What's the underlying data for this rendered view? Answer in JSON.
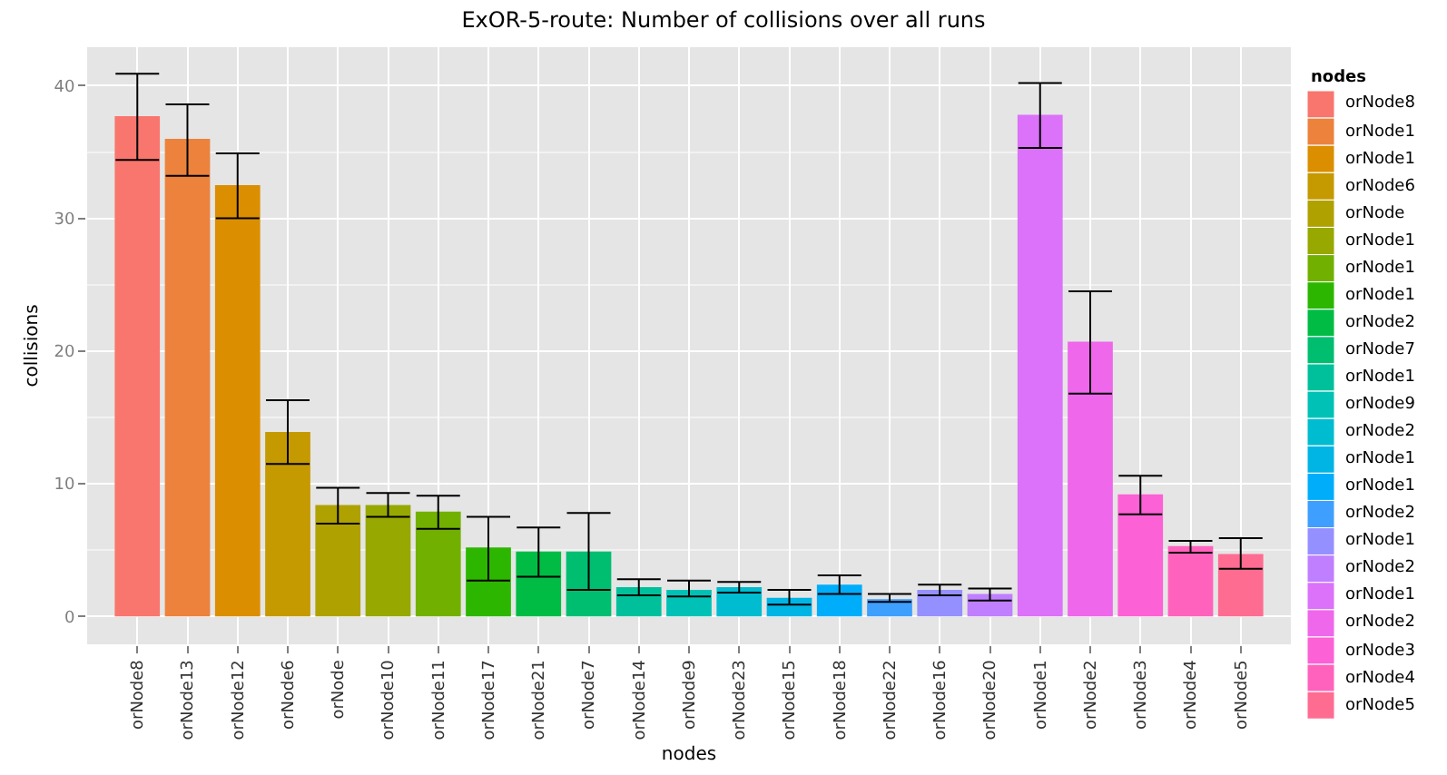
{
  "chart_data": {
    "type": "bar",
    "title": "ExOR-5-route: Number of collisions over all runs",
    "xlabel": "nodes",
    "ylabel": "collisions",
    "legend_title": "nodes",
    "legend": "right",
    "grid": true,
    "categories": [
      "orNode8",
      "orNode13",
      "orNode12",
      "orNode6",
      "orNode",
      "orNode10",
      "orNode11",
      "orNode17",
      "orNode21",
      "orNode7",
      "orNode14",
      "orNode9",
      "orNode23",
      "orNode15",
      "orNode18",
      "orNode22",
      "orNode16",
      "orNode20",
      "orNode1",
      "orNode2",
      "orNode3",
      "orNode4",
      "orNode5"
    ],
    "ylim": [
      -2.1,
      42.9
    ],
    "yticks": [
      0,
      10,
      20,
      30,
      40
    ],
    "series": [
      {
        "name": "orNode8",
        "color": "#f8766d",
        "values": [
          37.7,
          null,
          null,
          null,
          null,
          null,
          null,
          null,
          null,
          null,
          null,
          null,
          null,
          null,
          null,
          null,
          null,
          null,
          null,
          null,
          null,
          null,
          null
        ],
        "errors": [
          [
            34.4,
            40.9
          ],
          null,
          null,
          null,
          null,
          null,
          null,
          null,
          null,
          null,
          null,
          null,
          null,
          null,
          null,
          null,
          null,
          null,
          null,
          null,
          null,
          null,
          null
        ]
      },
      {
        "name": "orNode1",
        "color": "#ec823c",
        "values": [
          null,
          36.0,
          null,
          null,
          null,
          null,
          null,
          null,
          null,
          null,
          null,
          null,
          null,
          null,
          null,
          null,
          null,
          null,
          null,
          null,
          null,
          null,
          null
        ],
        "errors": [
          null,
          [
            33.2,
            38.6
          ],
          null,
          null,
          null,
          null,
          null,
          null,
          null,
          null,
          null,
          null,
          null,
          null,
          null,
          null,
          null,
          null,
          null,
          null,
          null,
          null,
          null
        ]
      },
      {
        "name": "orNode1",
        "color": "#db8e00",
        "values": [
          null,
          null,
          32.5,
          null,
          null,
          null,
          null,
          null,
          null,
          null,
          null,
          null,
          null,
          null,
          null,
          null,
          null,
          null,
          null,
          null,
          null,
          null,
          null
        ],
        "errors": [
          null,
          null,
          [
            30.0,
            34.9
          ],
          null,
          null,
          null,
          null,
          null,
          null,
          null,
          null,
          null,
          null,
          null,
          null,
          null,
          null,
          null,
          null,
          null,
          null,
          null,
          null
        ]
      },
      {
        "name": "orNode6",
        "color": "#c59900",
        "values": [
          null,
          null,
          null,
          13.9,
          null,
          null,
          null,
          null,
          null,
          null,
          null,
          null,
          null,
          null,
          null,
          null,
          null,
          null,
          null,
          null,
          null,
          null,
          null
        ],
        "errors": [
          null,
          null,
          null,
          [
            11.5,
            16.3
          ],
          null,
          null,
          null,
          null,
          null,
          null,
          null,
          null,
          null,
          null,
          null,
          null,
          null,
          null,
          null,
          null,
          null,
          null,
          null
        ]
      },
      {
        "name": "orNode",
        "color": "#afa100",
        "values": [
          null,
          null,
          null,
          null,
          8.4,
          null,
          null,
          null,
          null,
          null,
          null,
          null,
          null,
          null,
          null,
          null,
          null,
          null,
          null,
          null,
          null,
          null,
          null
        ],
        "errors": [
          null,
          null,
          null,
          null,
          [
            7.0,
            9.7
          ],
          null,
          null,
          null,
          null,
          null,
          null,
          null,
          null,
          null,
          null,
          null,
          null,
          null,
          null,
          null,
          null,
          null,
          null
        ]
      },
      {
        "name": "orNode1",
        "color": "#97a800",
        "values": [
          null,
          null,
          null,
          null,
          null,
          8.4,
          null,
          null,
          null,
          null,
          null,
          null,
          null,
          null,
          null,
          null,
          null,
          null,
          null,
          null,
          null,
          null,
          null
        ],
        "errors": [
          null,
          null,
          null,
          null,
          null,
          [
            7.5,
            9.3
          ],
          null,
          null,
          null,
          null,
          null,
          null,
          null,
          null,
          null,
          null,
          null,
          null,
          null,
          null,
          null,
          null,
          null
        ]
      },
      {
        "name": "orNode1",
        "color": "#72b000",
        "values": [
          null,
          null,
          null,
          null,
          null,
          null,
          7.9,
          null,
          null,
          null,
          null,
          null,
          null,
          null,
          null,
          null,
          null,
          null,
          null,
          null,
          null,
          null,
          null
        ],
        "errors": [
          null,
          null,
          null,
          null,
          null,
          null,
          [
            6.6,
            9.1
          ],
          null,
          null,
          null,
          null,
          null,
          null,
          null,
          null,
          null,
          null,
          null,
          null,
          null,
          null,
          null,
          null
        ]
      },
      {
        "name": "orNode1",
        "color": "#2db600",
        "values": [
          null,
          null,
          null,
          null,
          null,
          null,
          null,
          5.2,
          null,
          null,
          null,
          null,
          null,
          null,
          null,
          null,
          null,
          null,
          null,
          null,
          null,
          null,
          null
        ],
        "errors": [
          null,
          null,
          null,
          null,
          null,
          null,
          null,
          [
            2.7,
            7.5
          ],
          null,
          null,
          null,
          null,
          null,
          null,
          null,
          null,
          null,
          null,
          null,
          null,
          null,
          null,
          null
        ]
      },
      {
        "name": "orNode2",
        "color": "#00bc44",
        "values": [
          null,
          null,
          null,
          null,
          null,
          null,
          null,
          null,
          4.9,
          null,
          null,
          null,
          null,
          null,
          null,
          null,
          null,
          null,
          null,
          null,
          null,
          null,
          null
        ],
        "errors": [
          null,
          null,
          null,
          null,
          null,
          null,
          null,
          null,
          [
            3.0,
            6.7
          ],
          null,
          null,
          null,
          null,
          null,
          null,
          null,
          null,
          null,
          null,
          null,
          null,
          null,
          null
        ]
      },
      {
        "name": "orNode7",
        "color": "#00be70",
        "values": [
          null,
          null,
          null,
          null,
          null,
          null,
          null,
          null,
          null,
          4.9,
          null,
          null,
          null,
          null,
          null,
          null,
          null,
          null,
          null,
          null,
          null,
          null,
          null
        ],
        "errors": [
          null,
          null,
          null,
          null,
          null,
          null,
          null,
          null,
          null,
          [
            2.0,
            7.8
          ],
          null,
          null,
          null,
          null,
          null,
          null,
          null,
          null,
          null,
          null,
          null,
          null,
          null
        ]
      },
      {
        "name": "orNode1",
        "color": "#00c09b",
        "values": [
          null,
          null,
          null,
          null,
          null,
          null,
          null,
          null,
          null,
          null,
          2.2,
          null,
          null,
          null,
          null,
          null,
          null,
          null,
          null,
          null,
          null,
          null,
          null
        ],
        "errors": [
          null,
          null,
          null,
          null,
          null,
          null,
          null,
          null,
          null,
          null,
          [
            1.6,
            2.8
          ],
          null,
          null,
          null,
          null,
          null,
          null,
          null,
          null,
          null,
          null,
          null,
          null
        ]
      },
      {
        "name": "orNode9",
        "color": "#00c1b6",
        "values": [
          null,
          null,
          null,
          null,
          null,
          null,
          null,
          null,
          null,
          null,
          null,
          2.0,
          null,
          null,
          null,
          null,
          null,
          null,
          null,
          null,
          null,
          null,
          null
        ],
        "errors": [
          null,
          null,
          null,
          null,
          null,
          null,
          null,
          null,
          null,
          null,
          null,
          [
            1.5,
            2.7
          ],
          null,
          null,
          null,
          null,
          null,
          null,
          null,
          null,
          null,
          null,
          null
        ]
      },
      {
        "name": "orNode2",
        "color": "#00bcd0",
        "values": [
          null,
          null,
          null,
          null,
          null,
          null,
          null,
          null,
          null,
          null,
          null,
          null,
          2.2,
          null,
          null,
          null,
          null,
          null,
          null,
          null,
          null,
          null,
          null
        ],
        "errors": [
          null,
          null,
          null,
          null,
          null,
          null,
          null,
          null,
          null,
          null,
          null,
          null,
          [
            1.8,
            2.6
          ],
          null,
          null,
          null,
          null,
          null,
          null,
          null,
          null,
          null,
          null
        ]
      },
      {
        "name": "orNode1",
        "color": "#00b4e4",
        "values": [
          null,
          null,
          null,
          null,
          null,
          null,
          null,
          null,
          null,
          null,
          null,
          null,
          null,
          1.4,
          null,
          null,
          null,
          null,
          null,
          null,
          null,
          null,
          null
        ],
        "errors": [
          null,
          null,
          null,
          null,
          null,
          null,
          null,
          null,
          null,
          null,
          null,
          null,
          null,
          [
            0.9,
            2.0
          ],
          null,
          null,
          null,
          null,
          null,
          null,
          null,
          null,
          null
        ]
      },
      {
        "name": "orNode1",
        "color": "#00adfa",
        "values": [
          null,
          null,
          null,
          null,
          null,
          null,
          null,
          null,
          null,
          null,
          null,
          null,
          null,
          null,
          2.4,
          null,
          null,
          null,
          null,
          null,
          null,
          null,
          null
        ],
        "errors": [
          null,
          null,
          null,
          null,
          null,
          null,
          null,
          null,
          null,
          null,
          null,
          null,
          null,
          null,
          [
            1.7,
            3.1
          ],
          null,
          null,
          null,
          null,
          null,
          null,
          null,
          null
        ]
      },
      {
        "name": "orNode2",
        "color": "#3e9fff",
        "values": [
          null,
          null,
          null,
          null,
          null,
          null,
          null,
          null,
          null,
          null,
          null,
          null,
          null,
          null,
          null,
          1.3,
          null,
          null,
          null,
          null,
          null,
          null,
          null
        ],
        "errors": [
          null,
          null,
          null,
          null,
          null,
          null,
          null,
          null,
          null,
          null,
          null,
          null,
          null,
          null,
          null,
          [
            1.1,
            1.7
          ],
          null,
          null,
          null,
          null,
          null,
          null,
          null
        ]
      },
      {
        "name": "orNode1",
        "color": "#9590ff",
        "values": [
          null,
          null,
          null,
          null,
          null,
          null,
          null,
          null,
          null,
          null,
          null,
          null,
          null,
          null,
          null,
          null,
          2.0,
          null,
          null,
          null,
          null,
          null,
          null
        ],
        "errors": [
          null,
          null,
          null,
          null,
          null,
          null,
          null,
          null,
          null,
          null,
          null,
          null,
          null,
          null,
          null,
          null,
          [
            1.6,
            2.4
          ],
          null,
          null,
          null,
          null,
          null,
          null
        ]
      },
      {
        "name": "orNode2",
        "color": "#c07fff",
        "values": [
          null,
          null,
          null,
          null,
          null,
          null,
          null,
          null,
          null,
          null,
          null,
          null,
          null,
          null,
          null,
          null,
          null,
          1.7,
          null,
          null,
          null,
          null,
          null
        ],
        "errors": [
          null,
          null,
          null,
          null,
          null,
          null,
          null,
          null,
          null,
          null,
          null,
          null,
          null,
          null,
          null,
          null,
          null,
          [
            1.2,
            2.1
          ],
          null,
          null,
          null,
          null,
          null
        ]
      },
      {
        "name": "orNode1",
        "color": "#dc71fa",
        "values": [
          null,
          null,
          null,
          null,
          null,
          null,
          null,
          null,
          null,
          null,
          null,
          null,
          null,
          null,
          null,
          null,
          null,
          null,
          37.8,
          null,
          null,
          null,
          null
        ],
        "errors": [
          null,
          null,
          null,
          null,
          null,
          null,
          null,
          null,
          null,
          null,
          null,
          null,
          null,
          null,
          null,
          null,
          null,
          null,
          [
            35.3,
            40.2
          ],
          null,
          null,
          null,
          null
        ]
      },
      {
        "name": "orNode2",
        "color": "#ef67eb",
        "values": [
          null,
          null,
          null,
          null,
          null,
          null,
          null,
          null,
          null,
          null,
          null,
          null,
          null,
          null,
          null,
          null,
          null,
          null,
          null,
          20.7,
          null,
          null,
          null
        ],
        "errors": [
          null,
          null,
          null,
          null,
          null,
          null,
          null,
          null,
          null,
          null,
          null,
          null,
          null,
          null,
          null,
          null,
          null,
          null,
          null,
          [
            16.8,
            24.5
          ],
          null,
          null,
          null
        ]
      },
      {
        "name": "orNode3",
        "color": "#fc61d5",
        "values": [
          null,
          null,
          null,
          null,
          null,
          null,
          null,
          null,
          null,
          null,
          null,
          null,
          null,
          null,
          null,
          null,
          null,
          null,
          null,
          null,
          9.2,
          null,
          null
        ],
        "errors": [
          null,
          null,
          null,
          null,
          null,
          null,
          null,
          null,
          null,
          null,
          null,
          null,
          null,
          null,
          null,
          null,
          null,
          null,
          null,
          null,
          [
            7.7,
            10.6
          ],
          null,
          null
        ]
      },
      {
        "name": "orNode4",
        "color": "#ff62bc",
        "values": [
          null,
          null,
          null,
          null,
          null,
          null,
          null,
          null,
          null,
          null,
          null,
          null,
          null,
          null,
          null,
          null,
          null,
          null,
          null,
          null,
          null,
          5.3,
          null
        ],
        "errors": [
          null,
          null,
          null,
          null,
          null,
          null,
          null,
          null,
          null,
          null,
          null,
          null,
          null,
          null,
          null,
          null,
          null,
          null,
          null,
          null,
          null,
          [
            4.8,
            5.7
          ],
          null
        ]
      },
      {
        "name": "orNode5",
        "color": "#ff6c91",
        "values": [
          null,
          null,
          null,
          null,
          null,
          null,
          null,
          null,
          null,
          null,
          null,
          null,
          null,
          null,
          null,
          null,
          null,
          null,
          null,
          null,
          null,
          null,
          4.7
        ],
        "errors": [
          null,
          null,
          null,
          null,
          null,
          null,
          null,
          null,
          null,
          null,
          null,
          null,
          null,
          null,
          null,
          null,
          null,
          null,
          null,
          null,
          null,
          null,
          [
            3.6,
            5.9
          ]
        ]
      }
    ]
  }
}
